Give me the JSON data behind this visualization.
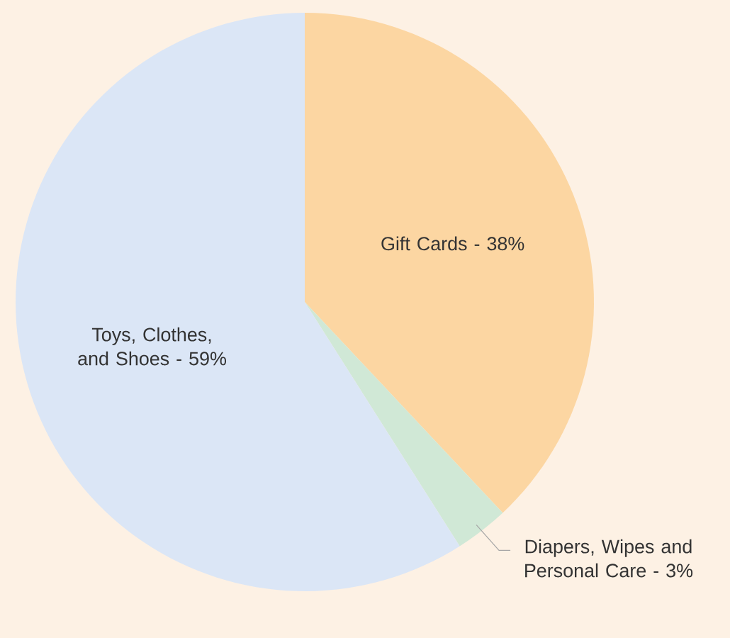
{
  "chart_data": {
    "type": "pie",
    "categories": [
      "Gift Cards -",
      "Diapers, Wipes and Personal Care -",
      "Toys, Clothes, and Shoes -"
    ],
    "values": [
      38,
      3,
      59
    ],
    "colors": [
      "#fcd6a2",
      "#d0e8d6",
      "#dbe6f6"
    ],
    "value_labels": [
      "38%",
      "3%",
      "59%"
    ]
  }
}
